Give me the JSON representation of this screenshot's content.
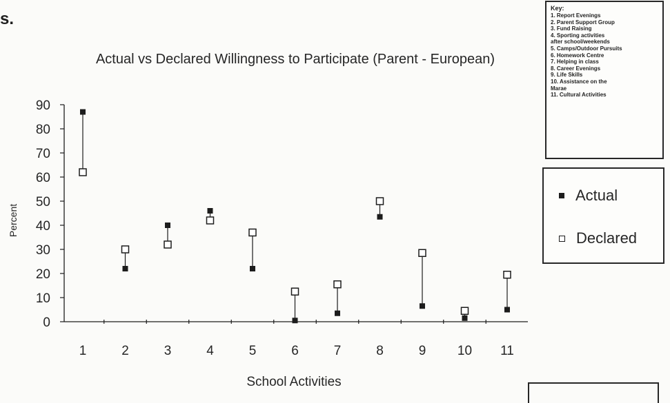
{
  "fragment_text": "s.",
  "key": {
    "title": "Key:",
    "items": [
      "1. Report Evenings",
      "2. Parent Support Group",
      "3. Fund Raising",
      "4. Sporting activities",
      "after school/weekends",
      "5. Camps/Outdoor Pursuits",
      "6. Homework Centre",
      "7. Helping in class",
      "8. Career Evenings",
      "9. Life Skills",
      "10. Assistance on the",
      "Marae",
      "11. Cultural Activities"
    ]
  },
  "chart_data": {
    "type": "scatter",
    "title": "Actual vs Declared Willingness to Participate (Parent - European)",
    "xlabel": "School Activities",
    "ylabel": "Percent",
    "categories": [
      "1",
      "2",
      "3",
      "4",
      "5",
      "6",
      "7",
      "8",
      "9",
      "10",
      "11"
    ],
    "ylim": [
      0,
      90
    ],
    "yticks": [
      0,
      10,
      20,
      30,
      40,
      50,
      60,
      70,
      80,
      90
    ],
    "grid": false,
    "legend_position": "right",
    "series": [
      {
        "name": "Actual",
        "marker": "filled-square",
        "values": [
          87,
          22,
          40,
          46,
          22,
          0.5,
          3.5,
          43.5,
          6.5,
          1.5,
          5
        ]
      },
      {
        "name": "Declared",
        "marker": "open-square",
        "values": [
          62,
          30,
          32,
          42,
          37,
          12.5,
          15.5,
          50,
          28.5,
          4.5,
          19.5
        ]
      }
    ],
    "connectors": true
  },
  "colors": {
    "ink": "#1c1c1c",
    "paper": "#fbfbf9"
  }
}
